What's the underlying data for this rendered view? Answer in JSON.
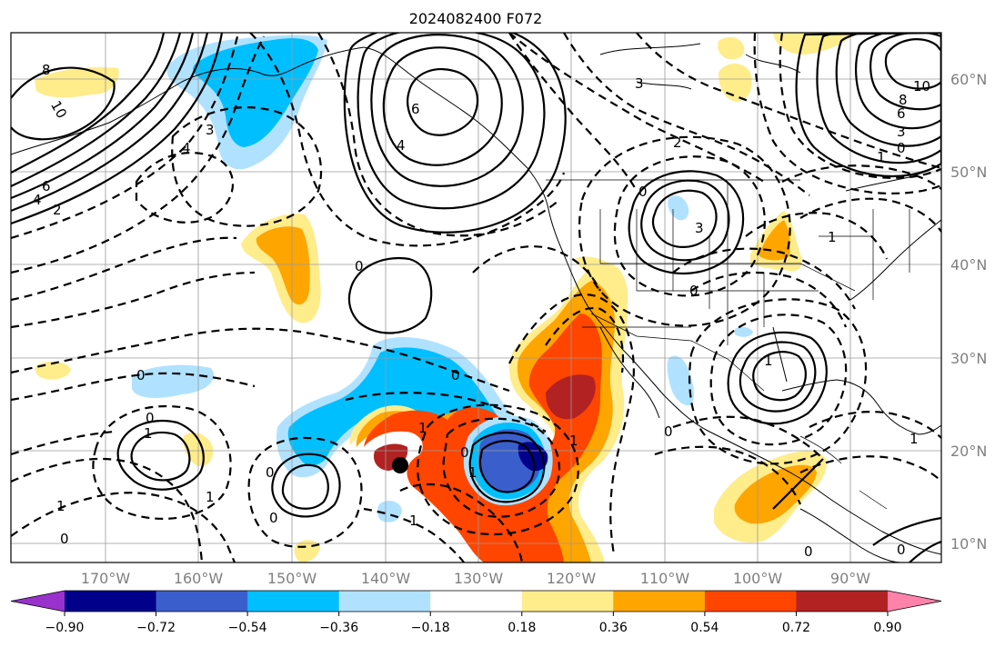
{
  "title": "2024082400 F072",
  "lat_labels": [
    "60°N",
    "50°N",
    "40°N",
    "30°N",
    "20°N",
    "10°N"
  ],
  "lon_labels": [
    "170°W",
    "160°W",
    "150°W",
    "140°W",
    "130°W",
    "120°W",
    "110°W",
    "100°W",
    "90°W"
  ],
  "colorbar": {
    "colors": [
      "#9932cc",
      "#00008b",
      "#3a5fcd",
      "#00bfff",
      "#b0e2ff",
      "#ffffff",
      "#ffec8b",
      "#ffa500",
      "#ff4500",
      "#b22222",
      "#ff82ab"
    ],
    "tick_labels": [
      "−0.90",
      "−0.72",
      "−0.54",
      "−0.36",
      "−0.18",
      "0.18",
      "0.36",
      "0.54",
      "0.72",
      "0.90"
    ]
  },
  "contour_labels": {
    "nw_8": "8",
    "nw_10": "10",
    "nw_6": "6",
    "nw_4": "4",
    "nw_2": "2",
    "nw_neg4": "4",
    "ak_6": "6",
    "ak_4": "4",
    "ak_neg3": "3",
    "ne_10": "10",
    "ne_8": "8",
    "ne_6": "6",
    "ne_3": "3",
    "ne_0": "0",
    "ne_neg1": "1",
    "can_neg2": "2",
    "can_neg3": "3",
    "us_0": "0",
    "us_neg3": "3",
    "us_neg1": "1",
    "pac_0a": "0",
    "pac_0b": "0",
    "pac_0c": "0",
    "pac_0d": "0",
    "hi_neg1": "1",
    "hi_0": "0",
    "hi_1": "1",
    "sw_neg1a": "1",
    "sw_0": "0",
    "sw_neg1b": "1",
    "tc_0a": "0",
    "tc_0b": "0",
    "tc_neg1": "1",
    "tc_1": "1",
    "mx_neg1": "1",
    "mx_0": "0",
    "gulf_1": "1",
    "carib_0": "0",
    "carib_0b": "0",
    "atl_neg1": "1",
    "atl_0": "0"
  }
}
